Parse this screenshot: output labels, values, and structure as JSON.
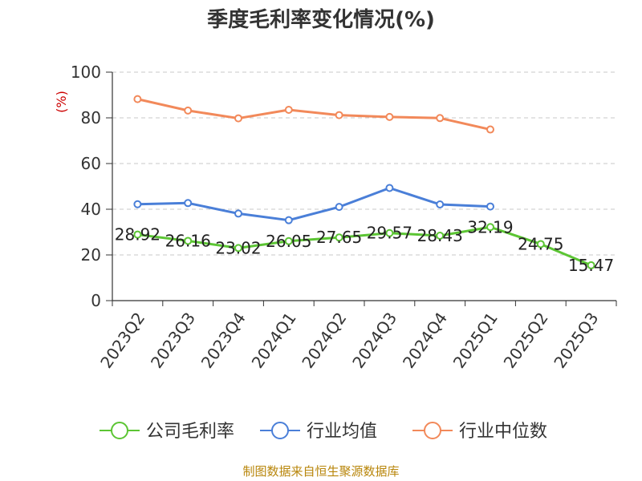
{
  "chart_data": {
    "type": "line",
    "title": "季度毛利率变化情况(%)",
    "ylabel": "(%)",
    "ylim": [
      0,
      100
    ],
    "yticks": [
      "0",
      "20",
      "40",
      "60",
      "80",
      "100"
    ],
    "categories": [
      "2023Q2",
      "2023Q3",
      "2023Q4",
      "2024Q1",
      "2024Q2",
      "2024Q3",
      "2024Q4",
      "2025Q1",
      "2025Q2",
      "2025Q3"
    ],
    "series": [
      {
        "name": "公司毛利率",
        "color": "#5cc534",
        "values": [
          28.92,
          26.16,
          23.02,
          26.05,
          27.65,
          29.57,
          28.43,
          32.19,
          24.75,
          15.47
        ],
        "labels": [
          "28.92",
          "26.16",
          "23.02",
          "26.05",
          "27.65",
          "29.57",
          "28.43",
          "32.19",
          "24.75",
          "15.47"
        ]
      },
      {
        "name": "行业均值",
        "color": "#4a7fd8",
        "values": [
          42.2,
          42.7,
          38.1,
          35.2,
          41.0,
          49.3,
          42.1,
          41.2,
          null,
          null
        ]
      },
      {
        "name": "行业中位数",
        "color": "#f2895a",
        "values": [
          88.2,
          83.2,
          79.8,
          83.5,
          81.2,
          80.4,
          79.9,
          74.9,
          null,
          null
        ]
      }
    ],
    "legend_position": "bottom",
    "grid": true,
    "source": "制图数据来自恒生聚源数据库"
  }
}
